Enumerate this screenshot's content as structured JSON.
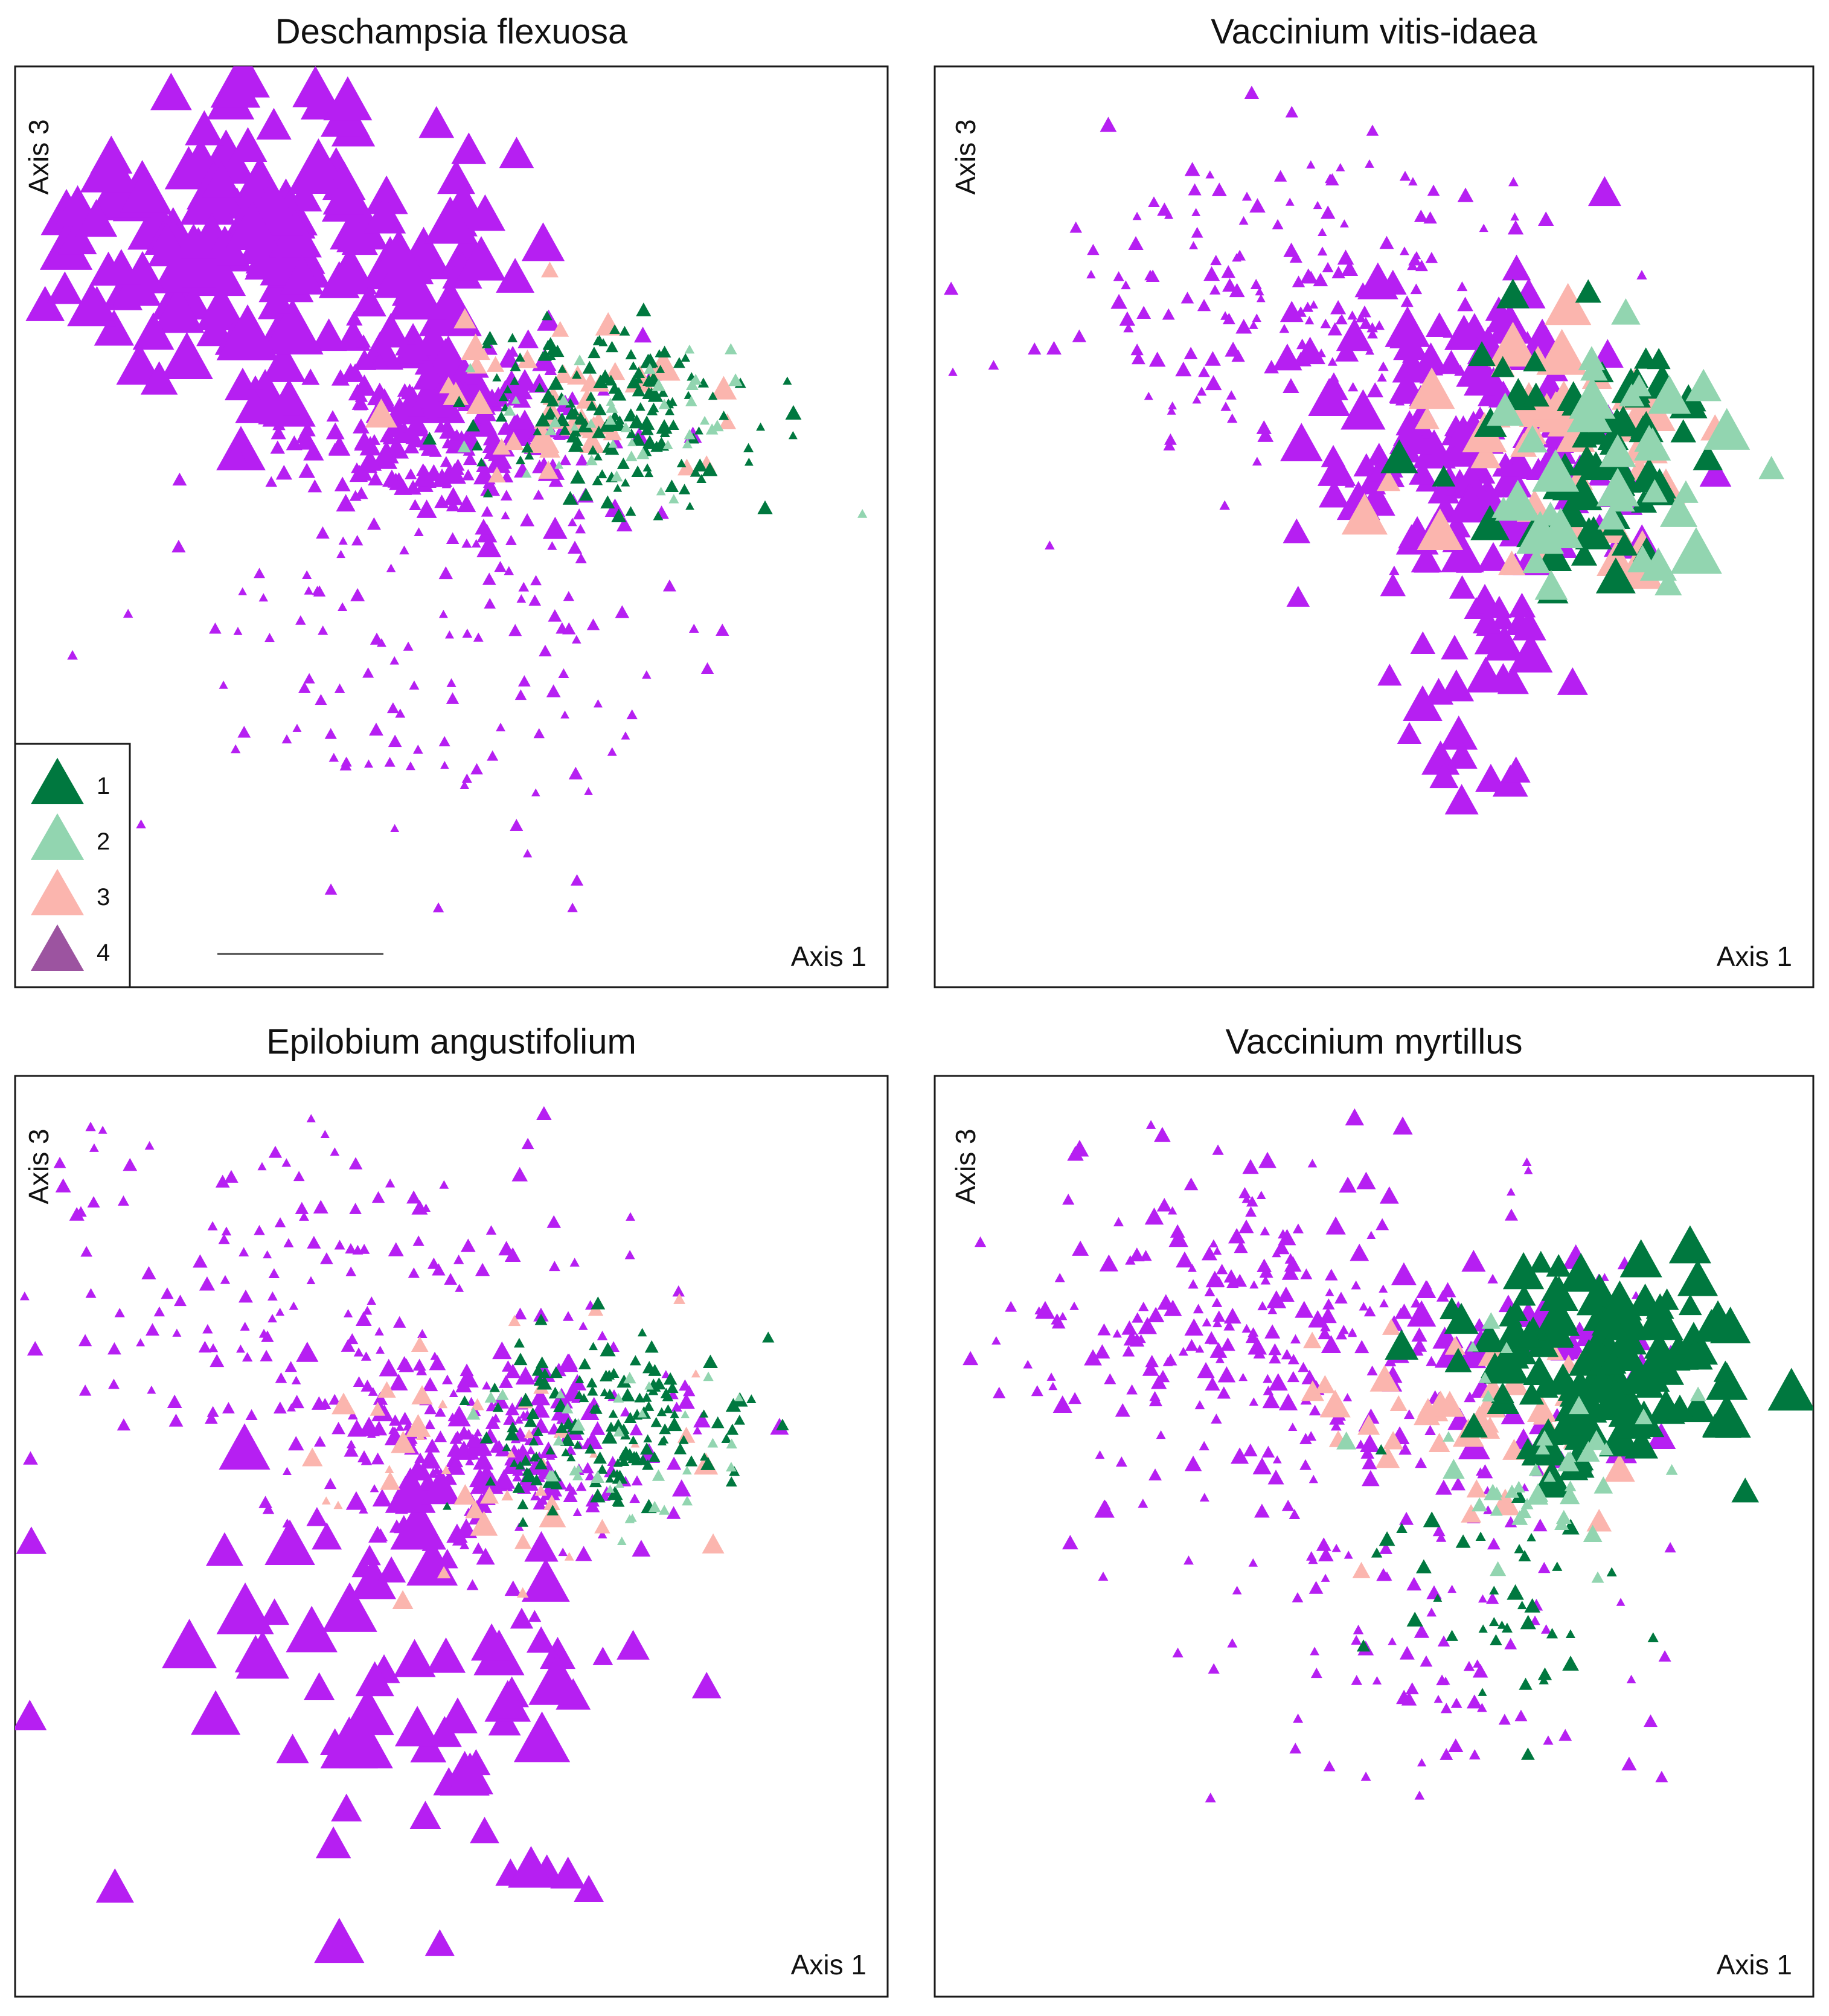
{
  "figure": {
    "legend": {
      "title": "",
      "entries": [
        {
          "label": "1",
          "color": "#00783f"
        },
        {
          "label": "2",
          "color": "#92d5b0"
        },
        {
          "label": "3",
          "color": "#fbb5ae"
        },
        {
          "label": "4",
          "color": "#9c54a0"
        }
      ]
    },
    "point_color_class4": "#b61ff2"
  },
  "chart_data": [
    {
      "type": "scatter",
      "title": "Deschampsia flexuosa",
      "xlabel": "Axis 1",
      "ylabel": "Axis 3",
      "xlim": [
        0,
        100
      ],
      "ylim": [
        0,
        100
      ],
      "grid": false,
      "legend_placement": "bottom-left",
      "size_note": "larger triangles = higher cover",
      "clusters": [
        {
          "class": "4",
          "cx": 28,
          "cy": 80,
          "sx": 14,
          "sy": 8,
          "n": 150,
          "smin": 0.5,
          "smax": 1.0
        },
        {
          "class": "4",
          "cx": 50,
          "cy": 60,
          "sx": 10,
          "sy": 5,
          "n": 260,
          "smin": 0.1,
          "smax": 0.35
        },
        {
          "class": "4",
          "cx": 50,
          "cy": 35,
          "sx": 15,
          "sy": 12,
          "n": 130,
          "smin": 0.05,
          "smax": 0.15
        },
        {
          "class": "3",
          "cx": 62,
          "cy": 63,
          "sx": 8,
          "sy": 5,
          "n": 40,
          "smin": 0.2,
          "smax": 0.5
        },
        {
          "class": "1",
          "cx": 68,
          "cy": 62,
          "sx": 8,
          "sy": 5,
          "n": 160,
          "smin": 0.05,
          "smax": 0.18
        },
        {
          "class": "2",
          "cx": 70,
          "cy": 60,
          "sx": 8,
          "sy": 5,
          "n": 40,
          "smin": 0.05,
          "smax": 0.15
        }
      ]
    },
    {
      "type": "scatter",
      "title": "Vaccinium vitis-idaea",
      "xlabel": "Axis 1",
      "ylabel": "Axis 3",
      "xlim": [
        0,
        100
      ],
      "ylim": [
        0,
        100
      ],
      "grid": false,
      "clusters": [
        {
          "class": "4",
          "cx": 40,
          "cy": 75,
          "sx": 15,
          "sy": 9,
          "n": 180,
          "smin": 0.05,
          "smax": 0.2
        },
        {
          "class": "4",
          "cx": 62,
          "cy": 58,
          "sx": 10,
          "sy": 10,
          "n": 150,
          "smin": 0.3,
          "smax": 0.7
        },
        {
          "class": "4",
          "cx": 62,
          "cy": 30,
          "sx": 5,
          "sy": 8,
          "n": 20,
          "smin": 0.4,
          "smax": 0.6
        },
        {
          "class": "3",
          "cx": 70,
          "cy": 58,
          "sx": 10,
          "sy": 8,
          "n": 50,
          "smin": 0.3,
          "smax": 0.8
        },
        {
          "class": "1",
          "cx": 75,
          "cy": 58,
          "sx": 7,
          "sy": 7,
          "n": 60,
          "smin": 0.3,
          "smax": 0.6
        },
        {
          "class": "2",
          "cx": 78,
          "cy": 55,
          "sx": 8,
          "sy": 7,
          "n": 35,
          "smin": 0.3,
          "smax": 0.8
        }
      ]
    },
    {
      "type": "scatter",
      "title": "Epilobium angustifolium",
      "xlabel": "Axis 1",
      "ylabel": "Axis 3",
      "xlim": [
        0,
        100
      ],
      "ylim": [
        0,
        100
      ],
      "grid": false,
      "clusters": [
        {
          "class": "4",
          "cx": 35,
          "cy": 75,
          "sx": 18,
          "sy": 10,
          "n": 170,
          "smin": 0.05,
          "smax": 0.18
        },
        {
          "class": "4",
          "cx": 55,
          "cy": 58,
          "sx": 10,
          "sy": 6,
          "n": 250,
          "smin": 0.05,
          "smax": 0.3
        },
        {
          "class": "4",
          "cx": 50,
          "cy": 30,
          "sx": 14,
          "sy": 14,
          "n": 70,
          "smin": 0.4,
          "smax": 0.9
        },
        {
          "class": "3",
          "cx": 55,
          "cy": 58,
          "sx": 12,
          "sy": 8,
          "n": 45,
          "smin": 0.05,
          "smax": 0.4
        },
        {
          "class": "1",
          "cx": 68,
          "cy": 62,
          "sx": 8,
          "sy": 5,
          "n": 150,
          "smin": 0.05,
          "smax": 0.18
        },
        {
          "class": "2",
          "cx": 70,
          "cy": 60,
          "sx": 8,
          "sy": 5,
          "n": 35,
          "smin": 0.05,
          "smax": 0.15
        }
      ]
    },
    {
      "type": "scatter",
      "title": "Vaccinium myrtillus",
      "xlabel": "Axis 1",
      "ylabel": "Axis 3",
      "xlim": [
        0,
        100
      ],
      "ylim": [
        0,
        100
      ],
      "grid": false,
      "clusters": [
        {
          "class": "4",
          "cx": 40,
          "cy": 72,
          "sx": 15,
          "sy": 10,
          "n": 280,
          "smin": 0.05,
          "smax": 0.25
        },
        {
          "class": "4",
          "cx": 55,
          "cy": 40,
          "sx": 12,
          "sy": 10,
          "n": 90,
          "smin": 0.05,
          "smax": 0.18
        },
        {
          "class": "4",
          "cx": 65,
          "cy": 68,
          "sx": 8,
          "sy": 6,
          "n": 30,
          "smin": 0.3,
          "smax": 0.5
        },
        {
          "class": "3",
          "cx": 62,
          "cy": 63,
          "sx": 9,
          "sy": 6,
          "n": 50,
          "smin": 0.2,
          "smax": 0.45
        },
        {
          "class": "1",
          "cx": 75,
          "cy": 68,
          "sx": 8,
          "sy": 6,
          "n": 130,
          "smin": 0.3,
          "smax": 0.75
        },
        {
          "class": "1",
          "cx": 62,
          "cy": 45,
          "sx": 10,
          "sy": 9,
          "n": 40,
          "smin": 0.05,
          "smax": 0.2
        },
        {
          "class": "2",
          "cx": 70,
          "cy": 58,
          "sx": 8,
          "sy": 6,
          "n": 40,
          "smin": 0.1,
          "smax": 0.3
        }
      ]
    }
  ]
}
